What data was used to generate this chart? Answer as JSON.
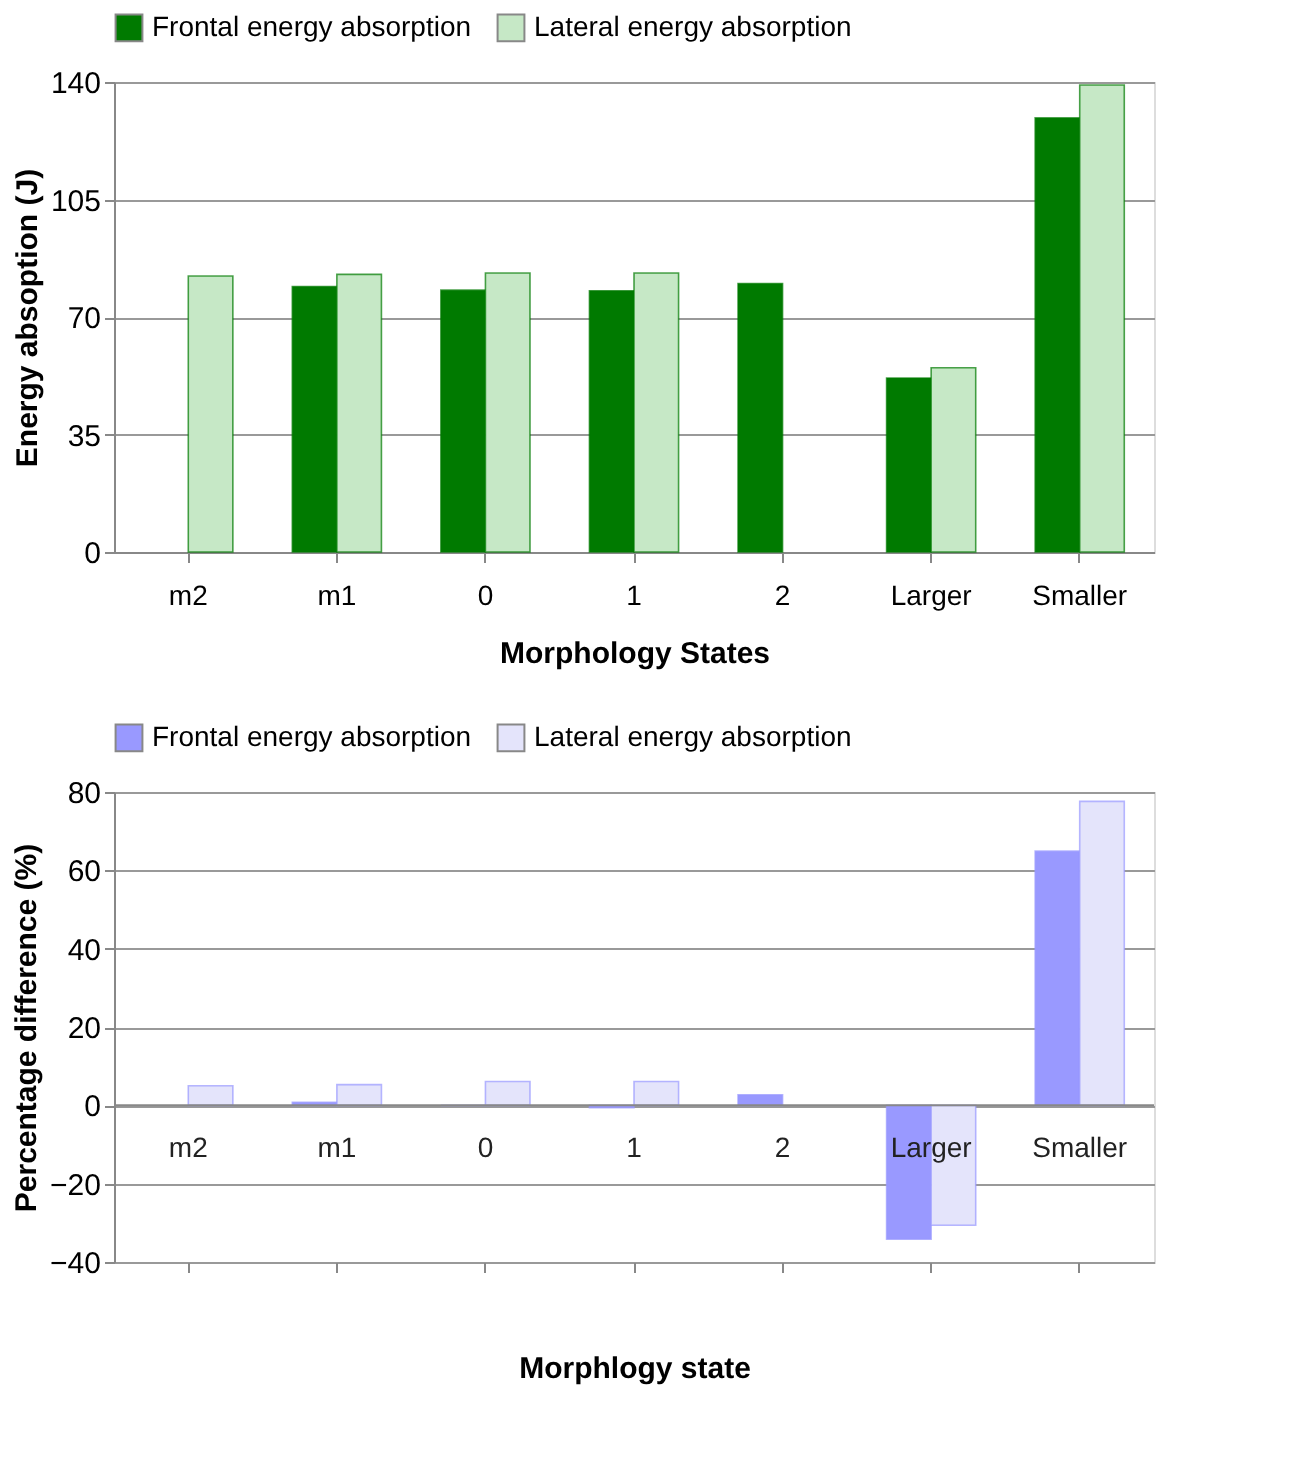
{
  "chart_data": [
    {
      "type": "bar",
      "xlabel": "Morphology States",
      "ylabel": "Energy absoption (J)",
      "categories": [
        "m2",
        "m1",
        "0",
        "1",
        "2",
        "Larger",
        "Smaller"
      ],
      "series": [
        {
          "name": "Frontal energy absorption",
          "color": "#007a00",
          "values": [
            null,
            79.1,
            78.0,
            77.8,
            80.0,
            51.8,
            129.3
          ]
        },
        {
          "name": "Lateral energy absorption",
          "color": "#c6e8c6",
          "values": [
            82.2,
            82.7,
            83.1,
            83.1,
            null,
            54.9,
            139.1
          ]
        }
      ],
      "ylim": [
        0,
        140
      ],
      "yticks": [
        0,
        35,
        70,
        105,
        140
      ],
      "grid": "y",
      "legend": "top"
    },
    {
      "type": "bar",
      "xlabel": "Morphlogy state",
      "ylabel": "Percentage difference (%)",
      "categories": [
        "m2",
        "m1",
        "0",
        "1",
        "2",
        "Larger",
        "Smaller"
      ],
      "series": [
        {
          "name": "Frontal energy absorption",
          "color": "#9999ff",
          "values": [
            null,
            0.8,
            0,
            -0.6,
            2.7,
            -34.2,
            64.9
          ]
        },
        {
          "name": "Lateral energy absorption",
          "color": "#e4e4fb",
          "values": [
            5.0,
            5.3,
            6.1,
            6.1,
            null,
            -30.6,
            77.6
          ]
        }
      ],
      "ylim": [
        -40,
        80
      ],
      "yticks": [
        -40,
        -20,
        0,
        20,
        40,
        60,
        80
      ],
      "grid": "y",
      "legend": "top"
    }
  ]
}
